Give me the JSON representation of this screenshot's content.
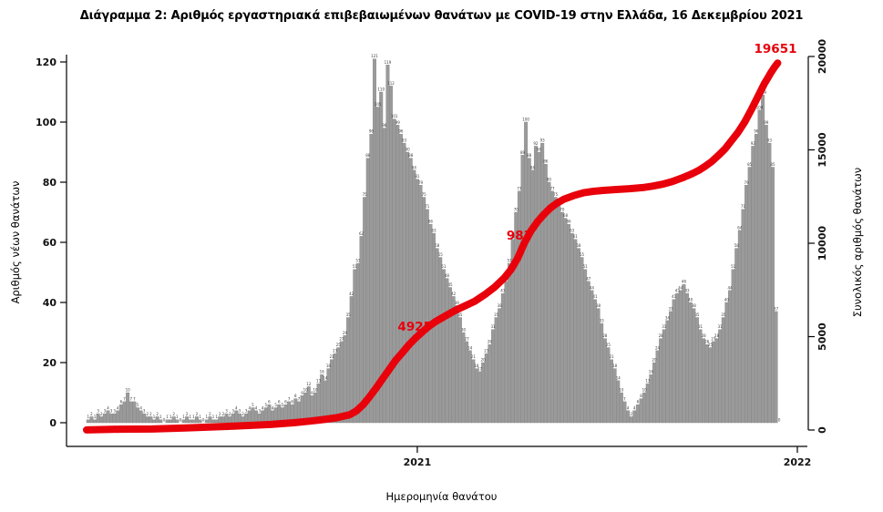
{
  "title": "Διάγραμμα 2: Αριθμός εργαστηριακά επιβεβαιωμένων θανάτων με COVID-19 στην Ελλάδα, 16 Δεκεμβρίου 2021",
  "axes": {
    "left": {
      "label": "Αριθμός νέων θανάτων",
      "ticks": [
        0,
        20,
        40,
        60,
        80,
        100,
        120
      ]
    },
    "right": {
      "label": "Συνολικός αριθμός θανάτων",
      "ticks": [
        0,
        5000,
        10000,
        15000,
        20000
      ]
    },
    "bottom": {
      "label": "Ημερομηνία θανάτου",
      "ticks": [
        "2021",
        "2022"
      ]
    }
  },
  "annotations": [
    {
      "text": "4925"
    },
    {
      "text": "983"
    },
    {
      "text": "19651"
    }
  ],
  "colors": {
    "bar_fill": "#9a9a9a",
    "bar_edge": "#7f7f7f",
    "line_red": "#e8000b",
    "bar_label": "#3a3a3a",
    "axis": "#000000"
  },
  "chart_data": {
    "type": "bar",
    "subtype": "daily-deaths-histogram-with-cumulative-line",
    "title": "Διάγραμμα 2: Αριθμός εργαστηριακά επιβεβαιωμένων θανάτων με COVID-19 στην Ελλάδα, 16 Δεκεμβρίου 2021",
    "xlabel": "Ημερομηνία θανάτου",
    "ylabel_left": "Αριθμός νέων θανάτων",
    "ylabel_right": "Συνολικός αριθμός θανάτων",
    "x_range_dates": [
      "2020-02",
      "2021-12-16"
    ],
    "x_tick_labels": [
      "2021",
      "2022"
    ],
    "ylim_left": [
      0,
      125
    ],
    "ylim_right": [
      0,
      20000
    ],
    "grid": false,
    "legend": "none",
    "bars_note": "daily laboratory-confirmed COVID-19 deaths in Greece, ~3-day aggregated approximation, left axis",
    "bar_values": [
      1,
      2,
      1,
      3,
      2,
      3,
      4,
      3,
      3,
      4,
      6,
      7,
      10,
      7,
      7,
      5,
      4,
      3,
      2,
      2,
      1,
      2,
      1,
      0,
      1,
      1,
      2,
      1,
      0,
      1,
      2,
      1,
      1,
      2,
      1,
      0,
      1,
      2,
      1,
      1,
      2,
      2,
      3,
      2,
      3,
      4,
      3,
      2,
      3,
      4,
      5,
      4,
      3,
      4,
      5,
      6,
      4,
      5,
      6,
      5,
      6,
      7,
      6,
      8,
      7,
      9,
      10,
      12,
      9,
      10,
      13,
      16,
      14,
      18,
      21,
      23,
      25,
      27,
      29,
      35,
      42,
      51,
      53,
      62,
      75,
      88,
      96,
      121,
      105,
      110,
      98,
      119,
      112,
      101,
      99,
      96,
      93,
      90,
      88,
      84,
      81,
      79,
      75,
      71,
      66,
      63,
      58,
      55,
      51,
      48,
      45,
      42,
      39,
      35,
      30,
      27,
      24,
      21,
      18,
      17,
      20,
      23,
      26,
      31,
      35,
      38,
      43,
      47,
      53,
      61,
      70,
      77,
      89,
      100,
      88,
      84,
      92,
      90,
      93,
      86,
      80,
      77,
      75,
      73,
      70,
      68,
      66,
      63,
      61,
      58,
      55,
      51,
      47,
      44,
      41,
      38,
      33,
      28,
      25,
      21,
      18,
      14,
      10,
      7,
      4,
      2,
      4,
      6,
      8,
      10,
      13,
      16,
      20,
      24,
      28,
      31,
      34,
      37,
      41,
      43,
      44,
      46,
      43,
      40,
      38,
      35,
      31,
      28,
      26,
      25,
      27,
      28,
      31,
      35,
      40,
      44,
      51,
      58,
      64,
      71,
      79,
      85,
      92,
      96,
      104,
      109,
      99,
      93,
      85,
      37,
      0
    ],
    "cumulative_line_note": "cumulative deaths, right axis; keypoints [bar_index, cumulative_value], linear interpolation",
    "cumulative_keypoints": [
      [
        0,
        3
      ],
      [
        10,
        45
      ],
      [
        20,
        55
      ],
      [
        30,
        110
      ],
      [
        43,
        195
      ],
      [
        56,
        300
      ],
      [
        63,
        390
      ],
      [
        68,
        480
      ],
      [
        72,
        560
      ],
      [
        76,
        660
      ],
      [
        80,
        820
      ],
      [
        82,
        1020
      ],
      [
        84,
        1350
      ],
      [
        86,
        1780
      ],
      [
        88,
        2250
      ],
      [
        90,
        2750
      ],
      [
        92,
        3250
      ],
      [
        94,
        3750
      ],
      [
        96,
        4150
      ],
      [
        98,
        4570
      ],
      [
        100,
        4925
      ],
      [
        102,
        5250
      ],
      [
        104,
        5550
      ],
      [
        106,
        5800
      ],
      [
        109,
        6100
      ],
      [
        112,
        6400
      ],
      [
        115,
        6650
      ],
      [
        118,
        6900
      ],
      [
        121,
        7250
      ],
      [
        124,
        7650
      ],
      [
        127,
        8150
      ],
      [
        129,
        8600
      ],
      [
        131,
        9200
      ],
      [
        133,
        10000
      ],
      [
        135,
        10650
      ],
      [
        137,
        11150
      ],
      [
        139,
        11550
      ],
      [
        141,
        11900
      ],
      [
        143,
        12150
      ],
      [
        145,
        12350
      ],
      [
        148,
        12550
      ],
      [
        151,
        12700
      ],
      [
        154,
        12780
      ],
      [
        157,
        12830
      ],
      [
        161,
        12880
      ],
      [
        165,
        12920
      ],
      [
        169,
        12980
      ],
      [
        172,
        13060
      ],
      [
        175,
        13160
      ],
      [
        178,
        13300
      ],
      [
        181,
        13500
      ],
      [
        184,
        13720
      ],
      [
        186,
        13900
      ],
      [
        188,
        14120
      ],
      [
        190,
        14380
      ],
      [
        192,
        14700
      ],
      [
        194,
        15050
      ],
      [
        196,
        15500
      ],
      [
        198,
        15950
      ],
      [
        200,
        16500
      ],
      [
        202,
        17150
      ],
      [
        204,
        17850
      ],
      [
        206,
        18550
      ],
      [
        207,
        18850
      ],
      [
        208,
        19150
      ],
      [
        209,
        19420
      ],
      [
        210,
        19651
      ]
    ],
    "annotated_values": {
      "end_of_2020": "4925",
      "spring_2021_partially_hidden": "983",
      "final_total_2021_12_16": "19651"
    }
  }
}
